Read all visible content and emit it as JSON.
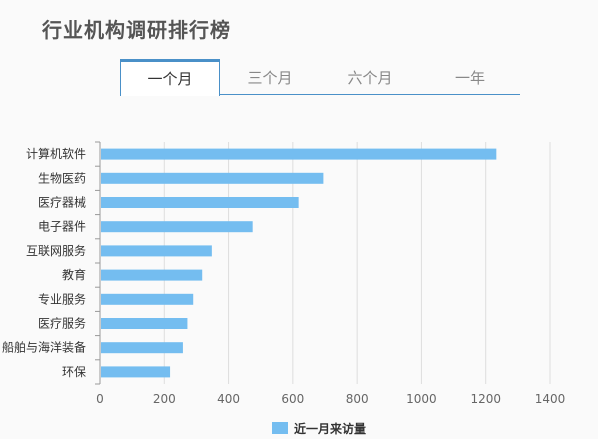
{
  "page": {
    "title": "行业机构调研排行榜"
  },
  "tabs": [
    {
      "label": "一个月",
      "active": true
    },
    {
      "label": "三个月",
      "active": false
    },
    {
      "label": "六个月",
      "active": false
    },
    {
      "label": "一年",
      "active": false
    }
  ],
  "colors": {
    "bar": "#74bdf0",
    "accent": "#4a90c8",
    "grid": "#dddddd",
    "axis": "#999999"
  },
  "chart_data": {
    "type": "bar",
    "orientation": "horizontal",
    "categories": [
      "计算机软件",
      "生物医药",
      "医疗器械",
      "电子器件",
      "互联网服务",
      "教育",
      "专业服务",
      "医疗服务",
      "船舶与海洋装备",
      "环保"
    ],
    "series": [
      {
        "name": "近一月来访量",
        "values": [
          1233,
          695,
          618,
          475,
          348,
          318,
          290,
          272,
          258,
          218
        ]
      }
    ],
    "xlim": [
      0,
      1400
    ],
    "xticks": [
      0,
      200,
      400,
      600,
      800,
      1000,
      1200,
      1400
    ],
    "grid": true,
    "legend": "bottom"
  }
}
